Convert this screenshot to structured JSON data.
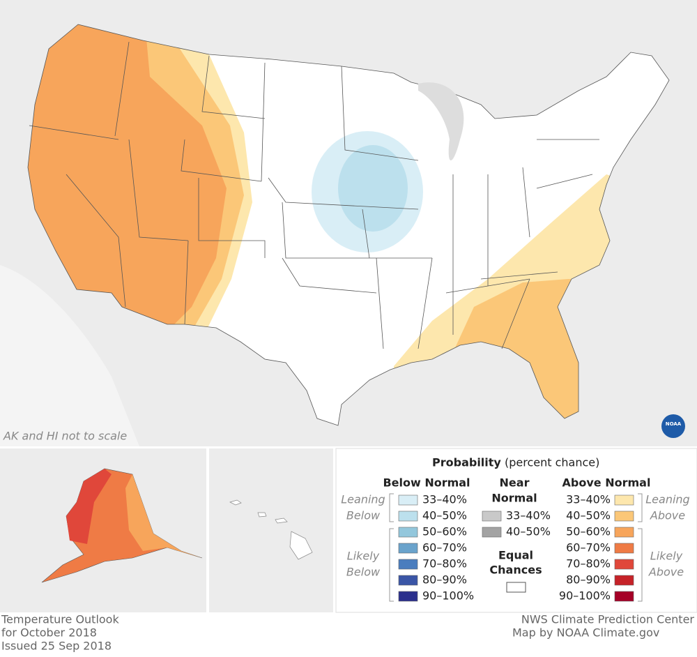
{
  "map": {
    "note": "AK and HI not to scale",
    "logo": "NOAA"
  },
  "legend": {
    "title": "Probability",
    "subtitle": "(percent chance)",
    "below": {
      "heading": "Below Normal",
      "leaning": [
        "Leaning",
        "Below"
      ],
      "likely": [
        "Likely",
        "Below"
      ],
      "items": [
        {
          "label": "33–40%",
          "color": "#d9eef6"
        },
        {
          "label": "40–50%",
          "color": "#bce0ed"
        },
        {
          "label": "50–60%",
          "color": "#93c7dc"
        },
        {
          "label": "60–70%",
          "color": "#6aa3cc"
        },
        {
          "label": "70–80%",
          "color": "#4a7dbe"
        },
        {
          "label": "80–90%",
          "color": "#3a55a6"
        },
        {
          "label": "90–100%",
          "color": "#2b2f8c"
        }
      ]
    },
    "near": {
      "heading": [
        "Near",
        "Normal"
      ],
      "items": [
        {
          "label": "33–40%",
          "color": "#c9c9c9"
        },
        {
          "label": "40–50%",
          "color": "#a3a3a3"
        }
      ]
    },
    "equal": {
      "heading": [
        "Equal",
        "Chances"
      ],
      "color": "#ffffff"
    },
    "above": {
      "heading": "Above Normal",
      "leaning": [
        "Leaning",
        "Above"
      ],
      "likely": [
        "Likely",
        "Above"
      ],
      "items": [
        {
          "label": "33–40%",
          "color": "#fde7ad"
        },
        {
          "label": "40–50%",
          "color": "#fbc778"
        },
        {
          "label": "50–60%",
          "color": "#f7a55b"
        },
        {
          "label": "60–70%",
          "color": "#ef7b45"
        },
        {
          "label": "70–80%",
          "color": "#e0473a"
        },
        {
          "label": "80–90%",
          "color": "#c62228"
        },
        {
          "label": "90–100%",
          "color": "#a50026"
        }
      ]
    }
  },
  "footer": {
    "left": [
      "Temperature Outlook",
      "for October 2018",
      "Issued 25 Sep 2018"
    ],
    "right": [
      "NWS Climate Prediction Center",
      "Map by NOAA Climate.gov"
    ]
  }
}
